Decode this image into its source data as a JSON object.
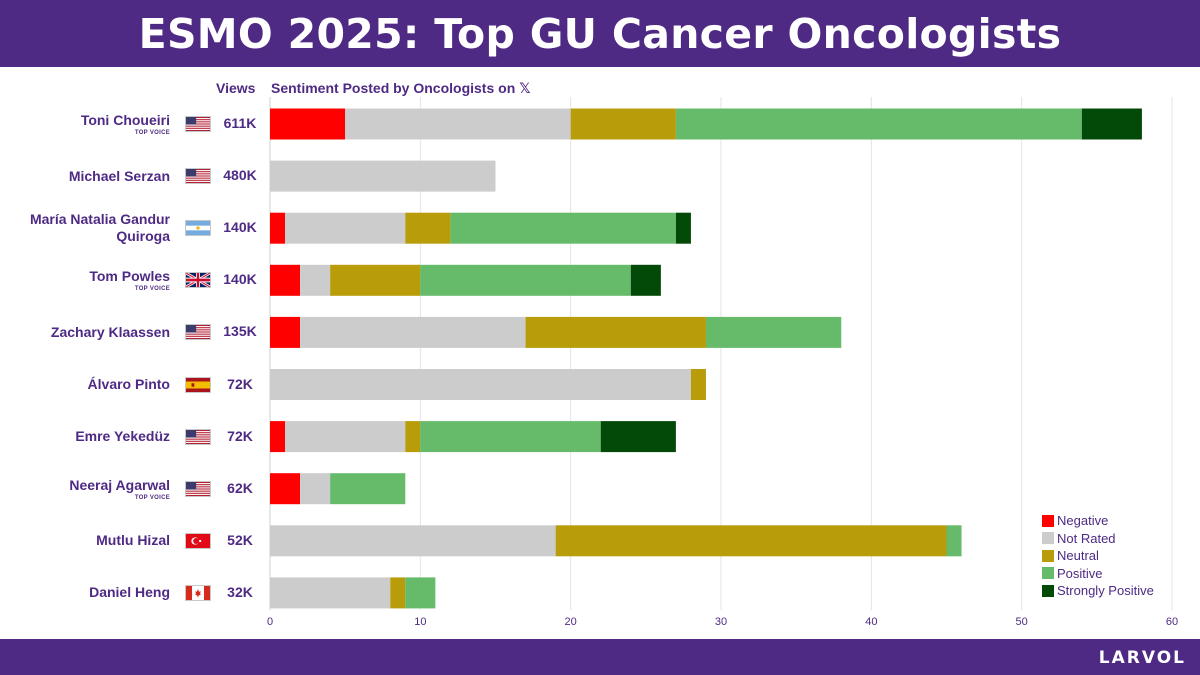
{
  "header": {
    "title": "ESMO 2025: Top GU Cancer Oncologists"
  },
  "footer": {
    "brand": "LARVOL"
  },
  "columns": {
    "views": "Views",
    "chart_title": "Sentiment Posted by Oncologists on",
    "x_logo": "𝕏"
  },
  "colors": {
    "header_bg": "#4e2a84",
    "Negative": "#ff0000",
    "Not Rated": "#cccccc",
    "Neutral": "#b89c0a",
    "Positive": "#66bb6a",
    "Strongly Positive": "#034a08"
  },
  "rows": [
    {
      "name_lines": [
        "Toni Choueiri"
      ],
      "badge": "TOP VOICE",
      "flag": "us",
      "views": "611K"
    },
    {
      "name_lines": [
        "Michael Serzan"
      ],
      "badge": "",
      "flag": "us",
      "views": "480K"
    },
    {
      "name_lines": [
        "María Natalia Gandur",
        "Quiroga"
      ],
      "badge": "",
      "flag": "ar",
      "views": "140K"
    },
    {
      "name_lines": [
        "Tom Powles"
      ],
      "badge": "TOP VOICE",
      "flag": "uk",
      "views": "140K"
    },
    {
      "name_lines": [
        "Zachary Klaassen"
      ],
      "badge": "",
      "flag": "us",
      "views": "135K"
    },
    {
      "name_lines": [
        "Álvaro Pinto"
      ],
      "badge": "",
      "flag": "es",
      "views": "72K"
    },
    {
      "name_lines": [
        "Emre Yekedüz"
      ],
      "badge": "",
      "flag": "us",
      "views": "72K"
    },
    {
      "name_lines": [
        "Neeraj Agarwal"
      ],
      "badge": "TOP VOICE",
      "flag": "us",
      "views": "62K"
    },
    {
      "name_lines": [
        "Mutlu Hizal"
      ],
      "badge": "",
      "flag": "tr",
      "views": "52K"
    },
    {
      "name_lines": [
        "Daniel Heng"
      ],
      "badge": "",
      "flag": "ca",
      "views": "32K"
    }
  ],
  "chart_data": {
    "type": "bar",
    "orientation": "horizontal",
    "stacked": true,
    "title": "Sentiment Posted by Oncologists on 𝕏",
    "xlabel": "",
    "ylabel": "",
    "xlim": [
      0,
      60
    ],
    "xticks": [
      0,
      10,
      20,
      30,
      40,
      50,
      60
    ],
    "grid": true,
    "legend_position": "bottom-right",
    "categories": [
      "Toni Choueiri",
      "Michael Serzan",
      "María Natalia Gandur Quiroga",
      "Tom Powles",
      "Zachary Klaassen",
      "Álvaro Pinto",
      "Emre Yekedüz",
      "Neeraj Agarwal",
      "Mutlu Hizal",
      "Daniel Heng"
    ],
    "series": [
      {
        "name": "Negative",
        "values": [
          5,
          0,
          1,
          2,
          2,
          0,
          1,
          2,
          0,
          0
        ]
      },
      {
        "name": "Not Rated",
        "values": [
          15,
          15,
          8,
          2,
          15,
          28,
          8,
          2,
          19,
          8
        ]
      },
      {
        "name": "Neutral",
        "values": [
          7,
          0,
          3,
          6,
          12,
          1,
          1,
          0,
          26,
          1
        ]
      },
      {
        "name": "Positive",
        "values": [
          27,
          0,
          15,
          14,
          9,
          0,
          12,
          5,
          1,
          2
        ]
      },
      {
        "name": "Strongly Positive",
        "values": [
          4,
          0,
          1,
          2,
          0,
          0,
          5,
          0,
          0,
          0
        ]
      }
    ]
  }
}
